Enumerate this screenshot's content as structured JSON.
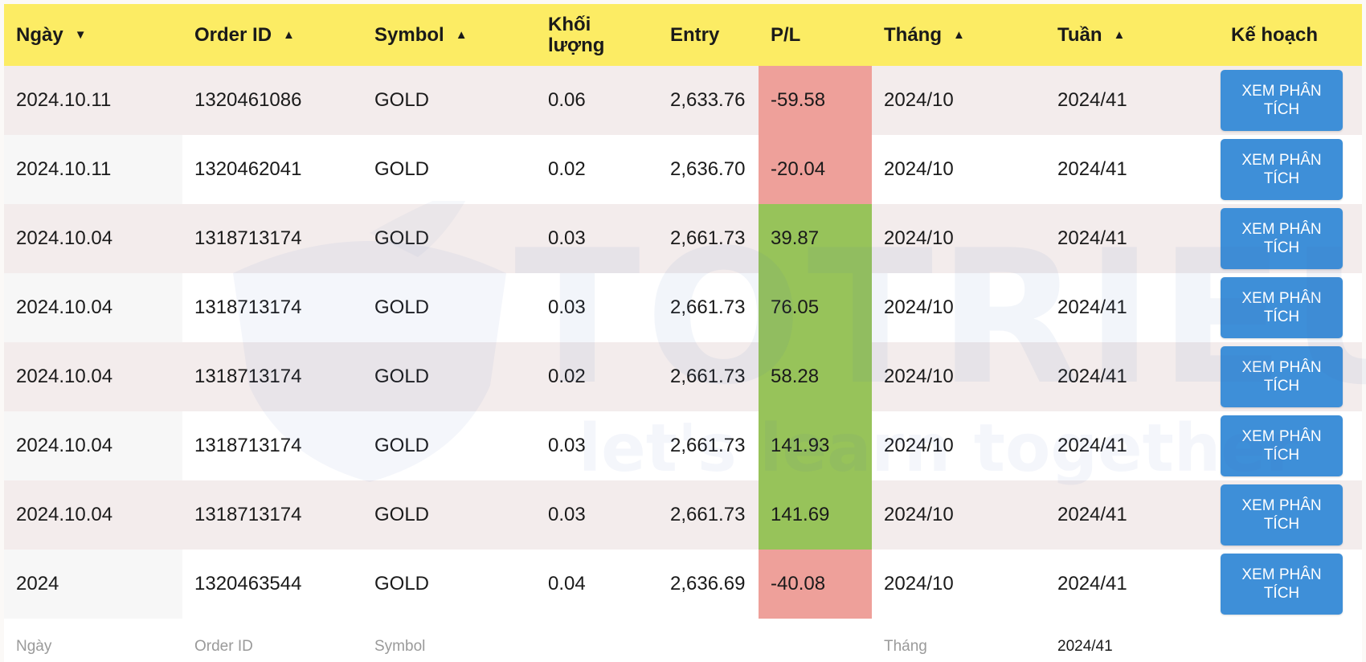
{
  "columns": {
    "date": "Ngày",
    "order_id": "Order ID",
    "symbol": "Symbol",
    "volume_line1": "Khối",
    "volume_line2": "lượng",
    "entry": "Entry",
    "pl": "P/L",
    "month": "Tháng",
    "week": "Tuần",
    "plan": "Kế hoạch"
  },
  "sort_icons": {
    "date": "▼",
    "order_id": "▲",
    "symbol": "▲",
    "month": "▲",
    "week": "▲"
  },
  "rows": [
    {
      "date": "2024.10.11",
      "order_id": "1320461086",
      "symbol": "GOLD",
      "volume": "0.06",
      "entry": "2,633.76",
      "pl": "-59.58",
      "month": "2024/10",
      "week": "2024/41",
      "button_line1": "XEM PHÂN",
      "button_line2": "TÍCH"
    },
    {
      "date": "2024.10.11",
      "order_id": "1320462041",
      "symbol": "GOLD",
      "volume": "0.02",
      "entry": "2,636.70",
      "pl": "-20.04",
      "month": "2024/10",
      "week": "2024/41",
      "button_line1": "XEM PHÂN",
      "button_line2": "TÍCH"
    },
    {
      "date": "2024.10.04",
      "order_id": "1318713174",
      "symbol": "GOLD",
      "volume": "0.03",
      "entry": "2,661.73",
      "pl": "39.87",
      "month": "2024/10",
      "week": "2024/41",
      "button_line1": "XEM PHÂN",
      "button_line2": "TÍCH"
    },
    {
      "date": "2024.10.04",
      "order_id": "1318713174",
      "symbol": "GOLD",
      "volume": "0.03",
      "entry": "2,661.73",
      "pl": "76.05",
      "month": "2024/10",
      "week": "2024/41",
      "button_line1": "XEM PHÂN",
      "button_line2": "TÍCH"
    },
    {
      "date": "2024.10.04",
      "order_id": "1318713174",
      "symbol": "GOLD",
      "volume": "0.02",
      "entry": "2,661.73",
      "pl": "58.28",
      "month": "2024/10",
      "week": "2024/41",
      "button_line1": "XEM PHÂN",
      "button_line2": "TÍCH"
    },
    {
      "date": "2024.10.04",
      "order_id": "1318713174",
      "symbol": "GOLD",
      "volume": "0.03",
      "entry": "2,661.73",
      "pl": "141.93",
      "month": "2024/10",
      "week": "2024/41",
      "button_line1": "XEM PHÂN",
      "button_line2": "TÍCH"
    },
    {
      "date": "2024.10.04",
      "order_id": "1318713174",
      "symbol": "GOLD",
      "volume": "0.03",
      "entry": "2,661.73",
      "pl": "141.69",
      "month": "2024/10",
      "week": "2024/41",
      "button_line1": "XEM PHÂN",
      "button_line2": "TÍCH"
    },
    {
      "date": "2024",
      "order_id": "1320463544",
      "symbol": "GOLD",
      "volume": "0.04",
      "entry": "2,636.69",
      "pl": "-40.08",
      "month": "2024/10",
      "week": "2024/41",
      "button_line1": "XEM PHÂN",
      "button_line2": "TÍCH"
    }
  ],
  "footer": {
    "date": "Ngày",
    "order_id": "Order ID",
    "symbol": "Symbol",
    "month": "Tháng",
    "week": "2024/41"
  },
  "watermark": {
    "brand": "TOTRIEU",
    "tagline": "let's learn together"
  },
  "colors": {
    "header_bg": "#fcec64",
    "loss_bg": "#eea09a",
    "profit_bg": "#97c35a",
    "button_bg": "#3e8fd8"
  }
}
